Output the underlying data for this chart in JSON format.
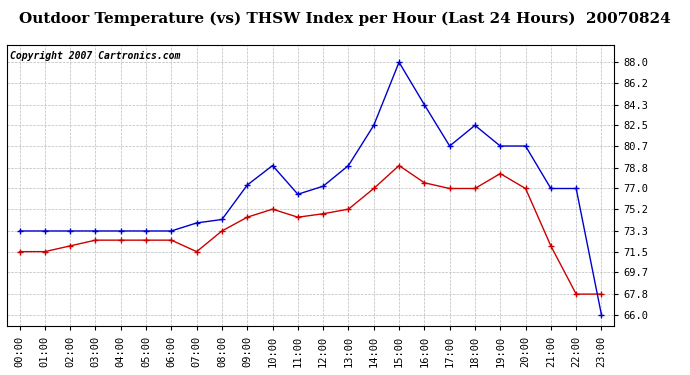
{
  "title": "Outdoor Temperature (vs) THSW Index per Hour (Last 24 Hours)  20070824",
  "copyright": "Copyright 2007 Cartronics.com",
  "hours": [
    "00:00",
    "01:00",
    "02:00",
    "03:00",
    "04:00",
    "05:00",
    "06:00",
    "07:00",
    "08:00",
    "09:00",
    "10:00",
    "11:00",
    "12:00",
    "13:00",
    "14:00",
    "15:00",
    "16:00",
    "17:00",
    "18:00",
    "19:00",
    "20:00",
    "21:00",
    "22:00",
    "23:00"
  ],
  "temp": [
    71.5,
    71.5,
    72.0,
    72.5,
    72.5,
    72.5,
    72.5,
    71.5,
    73.3,
    74.5,
    75.2,
    74.5,
    74.8,
    75.2,
    77.0,
    79.0,
    77.5,
    77.0,
    77.0,
    78.3,
    77.0,
    72.0,
    67.8,
    67.8
  ],
  "thsw": [
    73.3,
    73.3,
    73.3,
    73.3,
    73.3,
    73.3,
    73.3,
    74.0,
    74.3,
    77.3,
    79.0,
    76.5,
    77.2,
    79.0,
    82.5,
    88.0,
    84.3,
    80.7,
    82.5,
    80.7,
    80.7,
    77.0,
    77.0,
    66.0
  ],
  "ylim": [
    65.0,
    89.5
  ],
  "yticks": [
    66.0,
    67.8,
    69.7,
    71.5,
    73.3,
    75.2,
    77.0,
    78.8,
    80.7,
    82.5,
    84.3,
    86.2,
    88.0
  ],
  "temp_color": "#cc0000",
  "thsw_color": "#0000cc",
  "bg_color": "#ffffff",
  "plot_bg": "#ffffff",
  "grid_color": "#bbbbbb",
  "title_fontsize": 11,
  "copyright_fontsize": 7,
  "tick_fontsize": 7.5,
  "ytick_fontsize": 7.5
}
